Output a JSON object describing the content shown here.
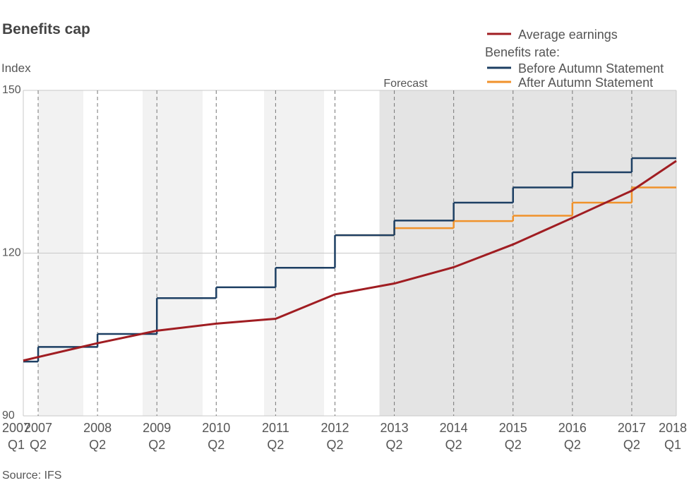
{
  "chart_data": {
    "type": "line",
    "title": "Benefits cap",
    "y_label": "Index",
    "source": "Source: IFS",
    "legend_group_title": "Benefits rate:",
    "annotation": {
      "text": "Forecast",
      "x": "2013 Q1"
    },
    "xlim": [
      "2007 Q1",
      "2018 Q1"
    ],
    "xticks": [
      "2007\nQ1",
      "2007\nQ2",
      "2008\nQ2",
      "2009\nQ2",
      "2010\nQ2",
      "2011\nQ2",
      "2012\nQ2",
      "2013\nQ2",
      "2014\nQ2",
      "2015\nQ2",
      "2016\nQ2",
      "2017\nQ2",
      "2018\nQ1"
    ],
    "ylim": [
      90,
      150
    ],
    "yticks": [
      90,
      120,
      150
    ],
    "grid": true,
    "series": [
      {
        "name": "Average earnings",
        "color": "#a01d22",
        "step": false,
        "x": [
          "2007 Q1",
          "2008 Q2",
          "2009 Q2",
          "2010 Q2",
          "2011 Q2",
          "2012 Q2",
          "2013 Q2",
          "2014 Q2",
          "2015 Q2",
          "2016 Q2",
          "2017 Q2",
          "2018 Q1"
        ],
        "values": [
          100.2,
          103.4,
          105.7,
          107.0,
          107.9,
          112.4,
          114.4,
          117.4,
          121.6,
          126.5,
          131.5,
          137.0
        ]
      },
      {
        "name": "Before Autumn Statement",
        "color": "#1d3f63",
        "step": true,
        "x": [
          "2007 Q1",
          "2007 Q2",
          "2008 Q2",
          "2009 Q2",
          "2010 Q2",
          "2011 Q2",
          "2012 Q2",
          "2013 Q2",
          "2014 Q2",
          "2015 Q2",
          "2016 Q2",
          "2017 Q2",
          "2018 Q1"
        ],
        "values": [
          100,
          102.7,
          105.1,
          111.7,
          113.7,
          117.3,
          123.3,
          126.0,
          129.3,
          132.1,
          134.9,
          137.5,
          137.5
        ]
      },
      {
        "name": "After Autumn Statement",
        "color": "#f0922b",
        "step": true,
        "x": [
          "2012 Q2",
          "2013 Q2",
          "2014 Q2",
          "2015 Q2",
          "2016 Q2",
          "2017 Q2",
          "2018 Q1"
        ],
        "values": [
          123.3,
          124.6,
          125.9,
          126.9,
          129.3,
          132.1,
          132.1
        ]
      }
    ]
  }
}
